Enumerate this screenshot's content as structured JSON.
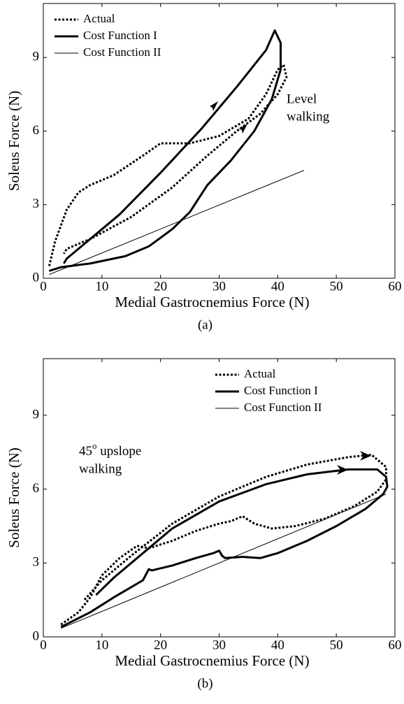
{
  "chart_data": [
    {
      "type": "line",
      "caption": "(a)",
      "xlabel": "Medial Gastrocnemius Force (N)",
      "ylabel": "Soleus Force (N)",
      "xlim": [
        0,
        60
      ],
      "ylim": [
        0,
        11.2
      ],
      "xticks": [
        0,
        10,
        20,
        30,
        40,
        50,
        60
      ],
      "yticks": [
        0,
        3,
        6,
        9
      ],
      "legend": "upper left",
      "annotation": {
        "lines": [
          "Level",
          "walking"
        ]
      },
      "series": [
        {
          "name": "Actual",
          "color": "#000000",
          "linestyle": "dotted",
          "linewidth": 3,
          "x": [
            1,
            2,
            4,
            6,
            8,
            12,
            17,
            20,
            25,
            30,
            35,
            38,
            40,
            41,
            41.5,
            40,
            37,
            33,
            28,
            22,
            15,
            8,
            4,
            3.5
          ],
          "values": [
            0.5,
            1.5,
            2.8,
            3.5,
            3.8,
            4.2,
            5.0,
            5.5,
            5.5,
            5.8,
            6.5,
            7.5,
            8.5,
            8.7,
            8.2,
            7.5,
            6.7,
            6.0,
            5.0,
            3.7,
            2.5,
            1.6,
            1.2,
            1.0
          ]
        },
        {
          "name": "Cost Function I",
          "color": "#000000",
          "linestyle": "solid",
          "linewidth": 3,
          "x": [
            1,
            3,
            8,
            14,
            18,
            22,
            25,
            28,
            32,
            36,
            39,
            40.5,
            40.5,
            39.5,
            38,
            33,
            27,
            20,
            13,
            7,
            4,
            3.5
          ],
          "values": [
            0.3,
            0.45,
            0.6,
            0.9,
            1.3,
            2.0,
            2.7,
            3.8,
            4.8,
            6.0,
            7.3,
            8.5,
            9.6,
            10.1,
            9.3,
            7.8,
            6.1,
            4.3,
            2.6,
            1.4,
            0.8,
            0.6
          ]
        },
        {
          "name": "Cost Function II",
          "color": "#000000",
          "linestyle": "solid",
          "linewidth": 1,
          "x": [
            1,
            44.5
          ],
          "values": [
            0.15,
            4.4
          ]
        }
      ]
    },
    {
      "type": "line",
      "caption": "(b)",
      "xlabel": "Medial Gastrocnemius Force (N)",
      "ylabel": "Soleus Force (N)",
      "xlim": [
        0,
        60
      ],
      "ylim": [
        0,
        11.3
      ],
      "xticks": [
        0,
        10,
        20,
        30,
        40,
        50,
        60
      ],
      "yticks": [
        0,
        3,
        6,
        9
      ],
      "legend": "upper right",
      "annotation": {
        "prefix": "45",
        "superscript": "o",
        "rest": " upslope",
        "line2": "walking"
      },
      "series": [
        {
          "name": "Actual",
          "color": "#000000",
          "linestyle": "dotted",
          "linewidth": 3,
          "x": [
            3,
            6,
            8,
            10,
            13,
            16,
            18,
            22,
            26,
            30,
            32,
            34,
            36,
            39,
            43,
            48,
            53,
            57,
            58.5,
            58.5,
            56,
            52,
            45,
            38,
            30,
            22,
            15,
            10,
            7
          ],
          "values": [
            0.5,
            1.0,
            1.6,
            2.5,
            3.2,
            3.7,
            3.6,
            3.9,
            4.3,
            4.6,
            4.7,
            4.9,
            4.6,
            4.4,
            4.5,
            4.8,
            5.3,
            5.9,
            6.4,
            6.9,
            7.4,
            7.3,
            7.0,
            6.5,
            5.7,
            4.6,
            3.3,
            2.3,
            1.5
          ]
        },
        {
          "name": "Cost Function I",
          "color": "#000000",
          "linestyle": "solid",
          "linewidth": 3,
          "x": [
            3,
            8,
            12,
            17,
            18,
            18.5,
            22,
            26,
            29,
            30,
            30.5,
            31,
            34,
            37,
            40,
            45,
            50,
            55,
            58,
            58.7,
            58.5,
            57,
            52,
            45,
            38,
            30,
            22,
            16,
            12,
            9
          ],
          "values": [
            0.4,
            1.0,
            1.6,
            2.3,
            2.75,
            2.7,
            2.9,
            3.2,
            3.4,
            3.5,
            3.3,
            3.2,
            3.25,
            3.2,
            3.4,
            3.9,
            4.5,
            5.2,
            5.8,
            6.1,
            6.5,
            6.8,
            6.8,
            6.6,
            6.2,
            5.5,
            4.4,
            3.2,
            2.4,
            1.7
          ]
        },
        {
          "name": "Cost Function II",
          "color": "#000000",
          "linestyle": "solid",
          "linewidth": 1,
          "x": [
            3,
            58.5
          ],
          "values": [
            0.35,
            5.8
          ]
        }
      ]
    }
  ]
}
